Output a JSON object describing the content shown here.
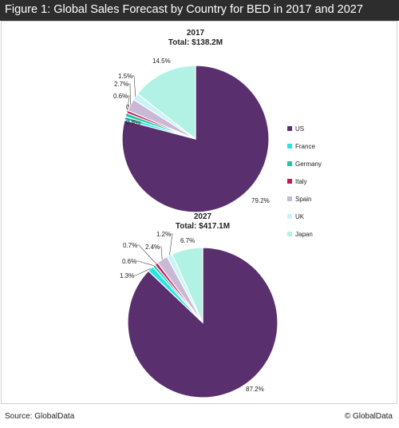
{
  "header": {
    "title": "Figure 1: Global Sales Forecast by Country for BED in 2017 and 2027"
  },
  "footer": {
    "source": "Source: GlobalData",
    "copyright": "© GlobalData"
  },
  "colors": {
    "US": "#5a2f6e",
    "France": "#25e6e6",
    "Germany": "#1ec7a0",
    "Italy": "#c2185b",
    "Spain": "#c9b8d6",
    "UK": "#c8f4f7",
    "Japan": "#b2f2e4"
  },
  "legend": [
    "US",
    "France",
    "Germany",
    "Italy",
    "Spain",
    "UK",
    "Japan"
  ],
  "chart_data": [
    {
      "type": "pie",
      "title": "2017",
      "subtitle": "Total: $138.2M",
      "categories": [
        "US",
        "France",
        "Germany",
        "Italy",
        "Spain",
        "UK",
        "Japan"
      ],
      "values": [
        79.2,
        0.8,
        0.8,
        0.6,
        2.7,
        1.5,
        14.5
      ],
      "labels": [
        "79.2%",
        "0.8%",
        "0.8%",
        "0.6%",
        "2.7%",
        "1.5%",
        "14.5%"
      ],
      "legend_position": "right"
    },
    {
      "type": "pie",
      "title": "2027",
      "subtitle": "Total: $417.1M",
      "categories": [
        "US",
        "France",
        "Germany",
        "Italy",
        "Spain",
        "UK",
        "Japan"
      ],
      "values": [
        87.2,
        1.3,
        0.6,
        0.7,
        2.4,
        1.2,
        6.7
      ],
      "labels": [
        "87.2%",
        "1.3%",
        "0.6%",
        "0.7%",
        "2.4%",
        "1.2%",
        "6.7%"
      ],
      "legend_position": "right"
    }
  ]
}
